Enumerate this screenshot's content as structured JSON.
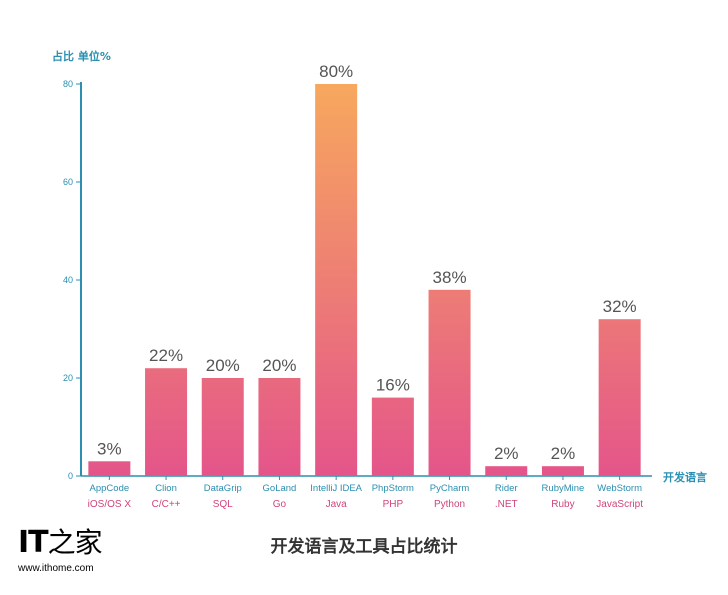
{
  "chart_data": {
    "type": "bar",
    "title": "开发语言及工具占比统计",
    "ylabel": "占比 单位%",
    "xlabel": "开发语言",
    "ylim": [
      0,
      80
    ],
    "yticks": [
      0,
      20,
      40,
      60,
      80
    ],
    "grid": false,
    "categories": [
      "AppCode",
      "Clion",
      "DataGrip",
      "GoLand",
      "IntelliJ IDEA",
      "PhpStorm",
      "PyCharm",
      "Rider",
      "RubyMine",
      "WebStorm"
    ],
    "languages": [
      "iOS/OS X",
      "C/C++",
      "SQL",
      "Go",
      "Java",
      "PHP",
      "Python",
      ".NET",
      "Ruby",
      "JavaScript"
    ],
    "values": [
      3,
      22,
      20,
      20,
      80,
      16,
      38,
      2,
      2,
      32
    ],
    "value_labels": [
      "3%",
      "22%",
      "20%",
      "20%",
      "80%",
      "16%",
      "38%",
      "2%",
      "2%",
      "32%"
    ],
    "colors": {
      "axis": "#2a8fb0",
      "bar_top": "#f7a85e",
      "bar_bottom": "#e4558a",
      "language_label": "#d0447a"
    }
  },
  "watermark": {
    "logo_text": "IT之家",
    "url": "www.ithome.com"
  }
}
